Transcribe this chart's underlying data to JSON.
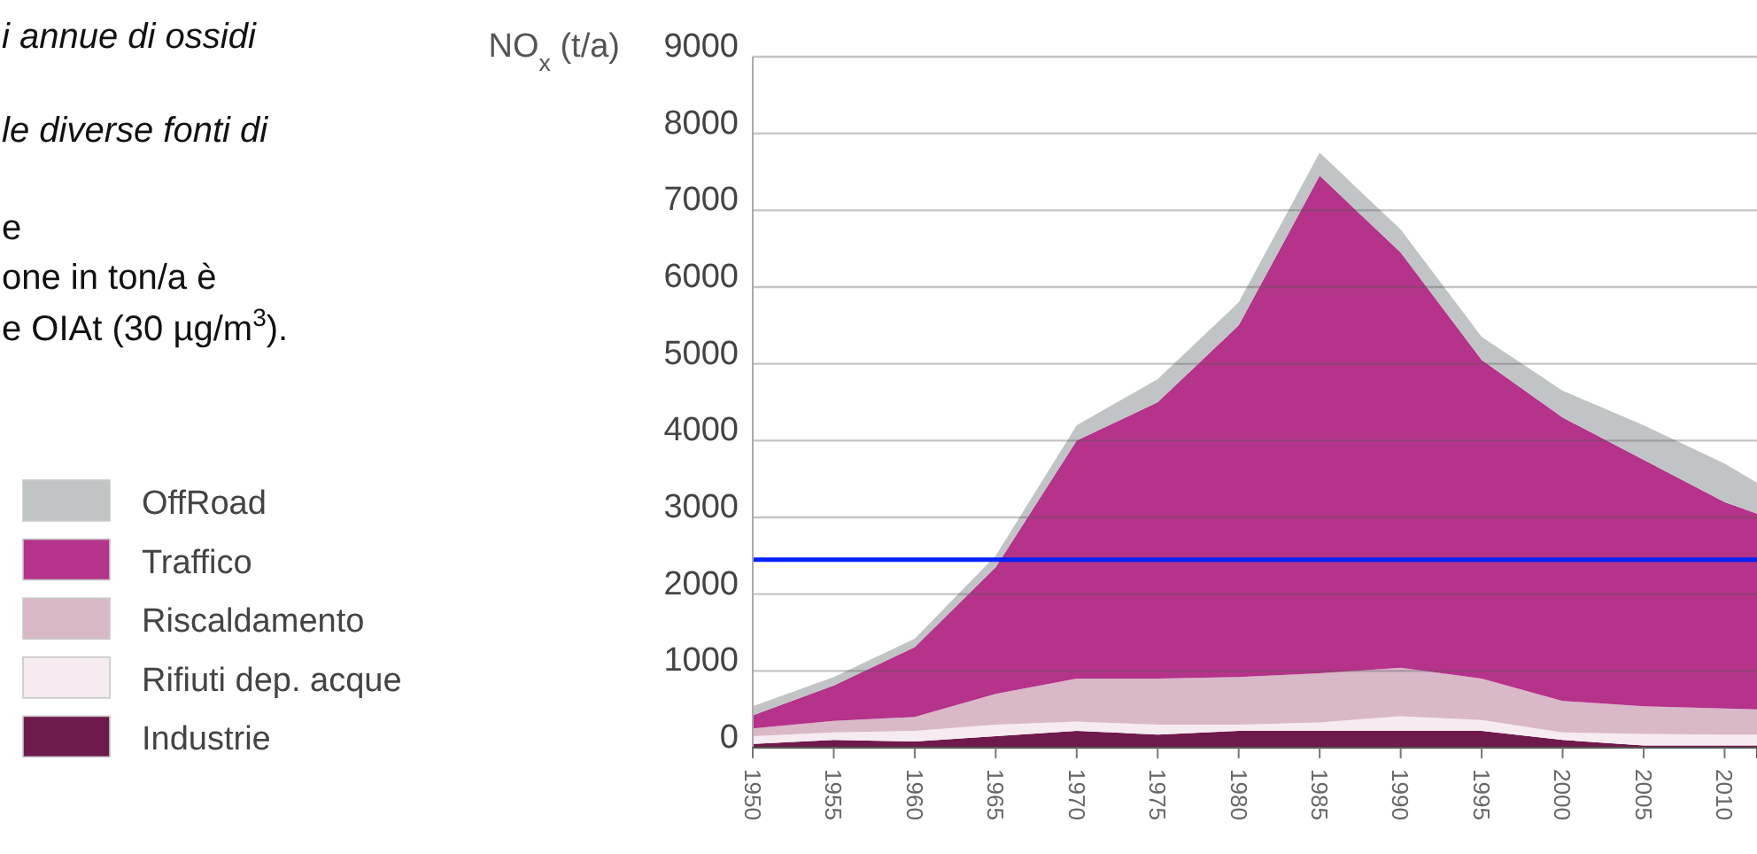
{
  "chart_data": {
    "type": "area",
    "stacked": true,
    "annotations": [
      "i annue di ossidi",
      "le diverse fonti di",
      "e",
      "one in ton/a è",
      "e OIAt (30 µg/m$^{3}$).",
      "NO$_{x}$ (t/a)"
    ],
    "x": [
      1950,
      1955,
      1960,
      1965,
      1970,
      1975,
      1980,
      1985,
      1990,
      1995,
      2000,
      2005,
      2010,
      2012
    ],
    "xlim": [
      1950,
      2012
    ],
    "xticks": [
      1950,
      1955,
      1960,
      1965,
      1970,
      1975,
      1980,
      1985,
      1990,
      1995,
      2000,
      2005,
      2010
    ],
    "ylim": [
      0,
      9000
    ],
    "yticks": [
      0,
      1000,
      2000,
      3000,
      4000,
      5000,
      6000,
      7000,
      8000,
      9000
    ],
    "grid": "y",
    "legend": "left",
    "series": [
      {
        "name": "Industrie",
        "color": "#6e1a4c",
        "values": [
          50,
          100,
          80,
          150,
          220,
          170,
          220,
          220,
          220,
          220,
          100,
          30,
          30,
          30
        ]
      },
      {
        "name": "Rifiuti dep. acque",
        "color": "#f6ebf1",
        "values": [
          100,
          100,
          140,
          150,
          120,
          130,
          80,
          110,
          190,
          140,
          100,
          150,
          140,
          140
        ]
      },
      {
        "name": "Riscaldamento",
        "color": "#d9b8c8",
        "values": [
          100,
          150,
          180,
          400,
          560,
          600,
          620,
          640,
          630,
          540,
          410,
          360,
          340,
          330
        ]
      },
      {
        "name": "Traffico",
        "color": "#b5338a",
        "values": [
          170,
          460,
          910,
          1650,
          3100,
          3600,
          4580,
          6480,
          5410,
          4150,
          3690,
          3210,
          2690,
          2550
        ]
      },
      {
        "name": "OffRoad",
        "color": "#c0c4c4",
        "values": [
          120,
          110,
          110,
          150,
          200,
          300,
          300,
          300,
          300,
          300,
          350,
          450,
          500,
          400
        ]
      }
    ],
    "ref_lines": [
      {
        "axis": "y",
        "value": 2450,
        "color": "#0022ff"
      }
    ]
  }
}
